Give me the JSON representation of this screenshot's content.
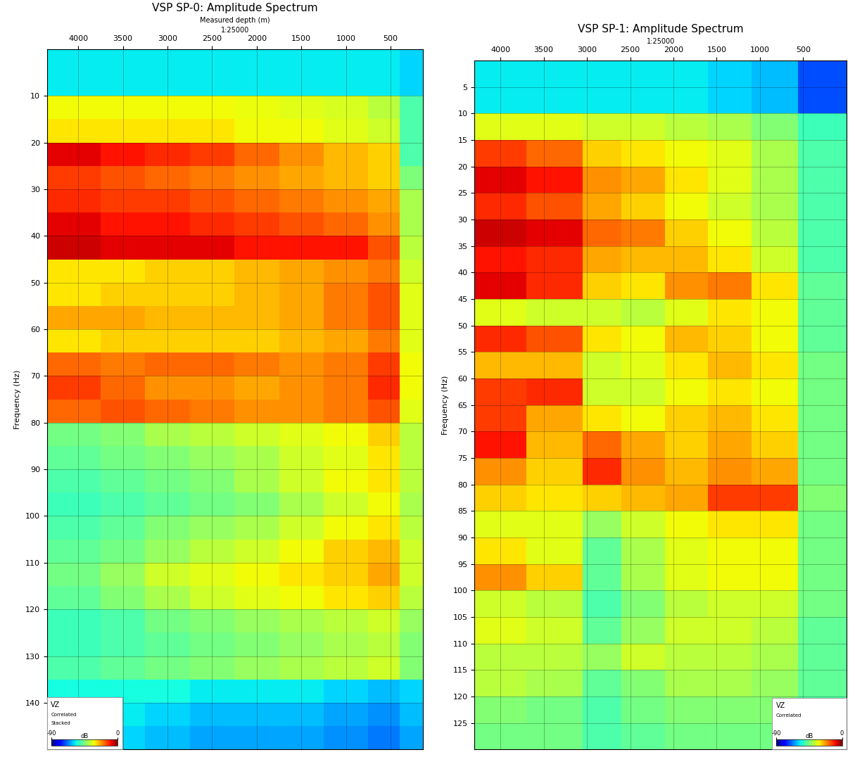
{
  "chart_data": [
    {
      "type": "heatmap",
      "title": "VSP SP-0: Amplitude Spectrum",
      "x_label": "Measured depth (m)",
      "subtitle": "1:25000",
      "y_label": "Frequency (Hz)",
      "grid": true,
      "xlim": [
        4350,
        135
      ],
      "xticks": [
        4000,
        3500,
        3000,
        2500,
        2000,
        1500,
        1000,
        500
      ],
      "ylim": [
        150,
        0
      ],
      "yticks": [
        10,
        20,
        30,
        40,
        50,
        60,
        70,
        80,
        90,
        100,
        110,
        120,
        130,
        140
      ],
      "x_edges": [
        4350,
        3750,
        3250,
        2750,
        2250,
        1750,
        1250,
        750,
        400,
        135
      ],
      "y_edges": [
        0,
        5,
        10,
        15,
        20,
        25,
        30,
        35,
        40,
        45,
        50,
        55,
        60,
        65,
        70,
        75,
        80,
        85,
        90,
        95,
        100,
        105,
        110,
        115,
        120,
        125,
        130,
        135,
        140,
        145,
        150
      ],
      "cells": [
        [
          -58,
          -58,
          -58,
          -58,
          -58,
          -58,
          -58,
          -58,
          -60
        ],
        [
          -58,
          -58,
          -58,
          -58,
          -58,
          -58,
          -58,
          -58,
          -60
        ],
        [
          -32,
          -32,
          -32,
          -32,
          -33,
          -34,
          -35,
          -38,
          -50
        ],
        [
          -30,
          -30,
          -30,
          -30,
          -32,
          -32,
          -34,
          -36,
          -50
        ],
        [
          -8,
          -10,
          -12,
          -14,
          -18,
          -22,
          -26,
          -28,
          -50
        ],
        [
          -14,
          -16,
          -18,
          -20,
          -22,
          -24,
          -26,
          -28,
          -45
        ],
        [
          -12,
          -14,
          -14,
          -16,
          -18,
          -20,
          -22,
          -24,
          -40
        ],
        [
          -8,
          -10,
          -10,
          -12,
          -14,
          -16,
          -18,
          -22,
          -40
        ],
        [
          -6,
          -8,
          -8,
          -8,
          -10,
          -10,
          -10,
          -16,
          -38
        ],
        [
          -30,
          -30,
          -28,
          -28,
          -26,
          -24,
          -22,
          -20,
          -36
        ],
        [
          -30,
          -28,
          -28,
          -28,
          -26,
          -24,
          -20,
          -16,
          -34
        ],
        [
          -24,
          -24,
          -26,
          -26,
          -26,
          -24,
          -20,
          -16,
          -34
        ],
        [
          -30,
          -28,
          -28,
          -28,
          -28,
          -26,
          -24,
          -20,
          -34
        ],
        [
          -18,
          -20,
          -18,
          -18,
          -20,
          -22,
          -20,
          -14,
          -32
        ],
        [
          -14,
          -18,
          -22,
          -22,
          -24,
          -22,
          -20,
          -12,
          -32
        ],
        [
          -18,
          -16,
          -18,
          -20,
          -22,
          -22,
          -20,
          -16,
          -34
        ],
        [
          -46,
          -44,
          -40,
          -38,
          -36,
          -34,
          -32,
          -28,
          -38
        ],
        [
          -48,
          -46,
          -44,
          -42,
          -40,
          -36,
          -34,
          -30,
          -38
        ],
        [
          -50,
          -48,
          -46,
          -44,
          -40,
          -36,
          -32,
          -30,
          -38
        ],
        [
          -52,
          -50,
          -48,
          -46,
          -44,
          -40,
          -36,
          -32,
          -40
        ],
        [
          -50,
          -48,
          -44,
          -42,
          -40,
          -36,
          -32,
          -30,
          -38
        ],
        [
          -48,
          -46,
          -42,
          -38,
          -36,
          -32,
          -28,
          -26,
          -36
        ],
        [
          -46,
          -42,
          -36,
          -34,
          -32,
          -30,
          -28,
          -24,
          -36
        ],
        [
          -48,
          -44,
          -40,
          -36,
          -34,
          -32,
          -30,
          -28,
          -38
        ],
        [
          -52,
          -50,
          -46,
          -44,
          -42,
          -40,
          -38,
          -36,
          -42
        ],
        [
          -52,
          -50,
          -48,
          -46,
          -44,
          -42,
          -40,
          -38,
          -44
        ],
        [
          -50,
          -48,
          -46,
          -44,
          -42,
          -40,
          -38,
          -36,
          -44
        ],
        [
          -56,
          -56,
          -56,
          -58,
          -58,
          -58,
          -60,
          -62,
          -60
        ],
        [
          -58,
          -58,
          -60,
          -62,
          -62,
          -62,
          -64,
          -66,
          -62
        ],
        [
          -60,
          -60,
          -62,
          -64,
          -64,
          -64,
          -66,
          -68,
          -64
        ]
      ],
      "colorbar": {
        "range": [
          -90,
          0
        ],
        "ticks": [
          -90,
          0
        ],
        "label": "dB"
      },
      "annotations": [
        "VZ",
        "Correlated",
        "Stacked"
      ]
    },
    {
      "type": "heatmap",
      "title": "VSP SP-1: Amplitude Spectrum",
      "subtitle": "1:25000",
      "y_label": "Frequency (Hz)",
      "grid": true,
      "xlim": [
        4300,
        0
      ],
      "xticks": [
        4000,
        3500,
        3000,
        2500,
        2000,
        1500,
        1000,
        500
      ],
      "ylim": [
        130,
        0
      ],
      "yticks": [
        5,
        10,
        15,
        20,
        25,
        30,
        35,
        40,
        45,
        50,
        55,
        60,
        65,
        70,
        75,
        80,
        85,
        90,
        95,
        100,
        105,
        110,
        115,
        120,
        125
      ],
      "x_edges": [
        4300,
        3700,
        3050,
        2600,
        2100,
        1600,
        1100,
        560,
        0
      ],
      "y_edges": [
        0,
        5,
        10,
        15,
        20,
        25,
        30,
        35,
        40,
        45,
        50,
        55,
        60,
        65,
        70,
        75,
        80,
        85,
        90,
        95,
        100,
        105,
        110,
        115,
        120,
        125,
        130
      ],
      "cells": [
        [
          -58,
          -58,
          -58,
          -58,
          -58,
          -60,
          -62,
          -72
        ],
        [
          -58,
          -58,
          -58,
          -58,
          -58,
          -60,
          -62,
          -72
        ],
        [
          -34,
          -34,
          -36,
          -36,
          -38,
          -40,
          -44,
          -52
        ],
        [
          -14,
          -18,
          -28,
          -30,
          -32,
          -34,
          -40,
          -50
        ],
        [
          -8,
          -10,
          -22,
          -24,
          -30,
          -34,
          -40,
          -50
        ],
        [
          -12,
          -16,
          -24,
          -28,
          -32,
          -36,
          -40,
          -50
        ],
        [
          -6,
          -8,
          -18,
          -20,
          -28,
          -32,
          -38,
          -50
        ],
        [
          -10,
          -12,
          -24,
          -26,
          -26,
          -30,
          -36,
          -50
        ],
        [
          -8,
          -12,
          -28,
          -30,
          -22,
          -20,
          -30,
          -48
        ],
        [
          -34,
          -36,
          -36,
          -38,
          -34,
          -30,
          -32,
          -48
        ],
        [
          -12,
          -16,
          -30,
          -32,
          -26,
          -28,
          -32,
          -48
        ],
        [
          -26,
          -26,
          -36,
          -34,
          -30,
          -26,
          -30,
          -46
        ],
        [
          -14,
          -12,
          -36,
          -36,
          -32,
          -30,
          -32,
          -46
        ],
        [
          -14,
          -24,
          -30,
          -32,
          -28,
          -26,
          -30,
          -46
        ],
        [
          -10,
          -26,
          -18,
          -24,
          -28,
          -24,
          -28,
          -46
        ],
        [
          -22,
          -28,
          -12,
          -22,
          -26,
          -22,
          -24,
          -46
        ],
        [
          -28,
          -30,
          -28,
          -26,
          -24,
          -14,
          -14,
          -44
        ],
        [
          -34,
          -34,
          -42,
          -36,
          -32,
          -30,
          -30,
          -46
        ],
        [
          -30,
          -34,
          -48,
          -40,
          -34,
          -32,
          -32,
          -46
        ],
        [
          -22,
          -28,
          -48,
          -40,
          -34,
          -32,
          -32,
          -46
        ],
        [
          -36,
          -38,
          -50,
          -44,
          -38,
          -36,
          -36,
          -46
        ],
        [
          -34,
          -36,
          -48,
          -42,
          -36,
          -36,
          -38,
          -48
        ],
        [
          -38,
          -38,
          -42,
          -36,
          -38,
          -38,
          -40,
          -48
        ],
        [
          -38,
          -40,
          -48,
          -44,
          -40,
          -40,
          -42,
          -48
        ],
        [
          -44,
          -46,
          -50,
          -46,
          -44,
          -44,
          -44,
          -50
        ],
        [
          -46,
          -46,
          -50,
          -48,
          -46,
          -46,
          -46,
          -50
        ]
      ],
      "colorbar": {
        "range": [
          -90,
          0
        ],
        "ticks": [
          -90,
          0
        ],
        "label": "dB"
      },
      "annotations": [
        "VZ",
        "Correlated"
      ]
    }
  ]
}
